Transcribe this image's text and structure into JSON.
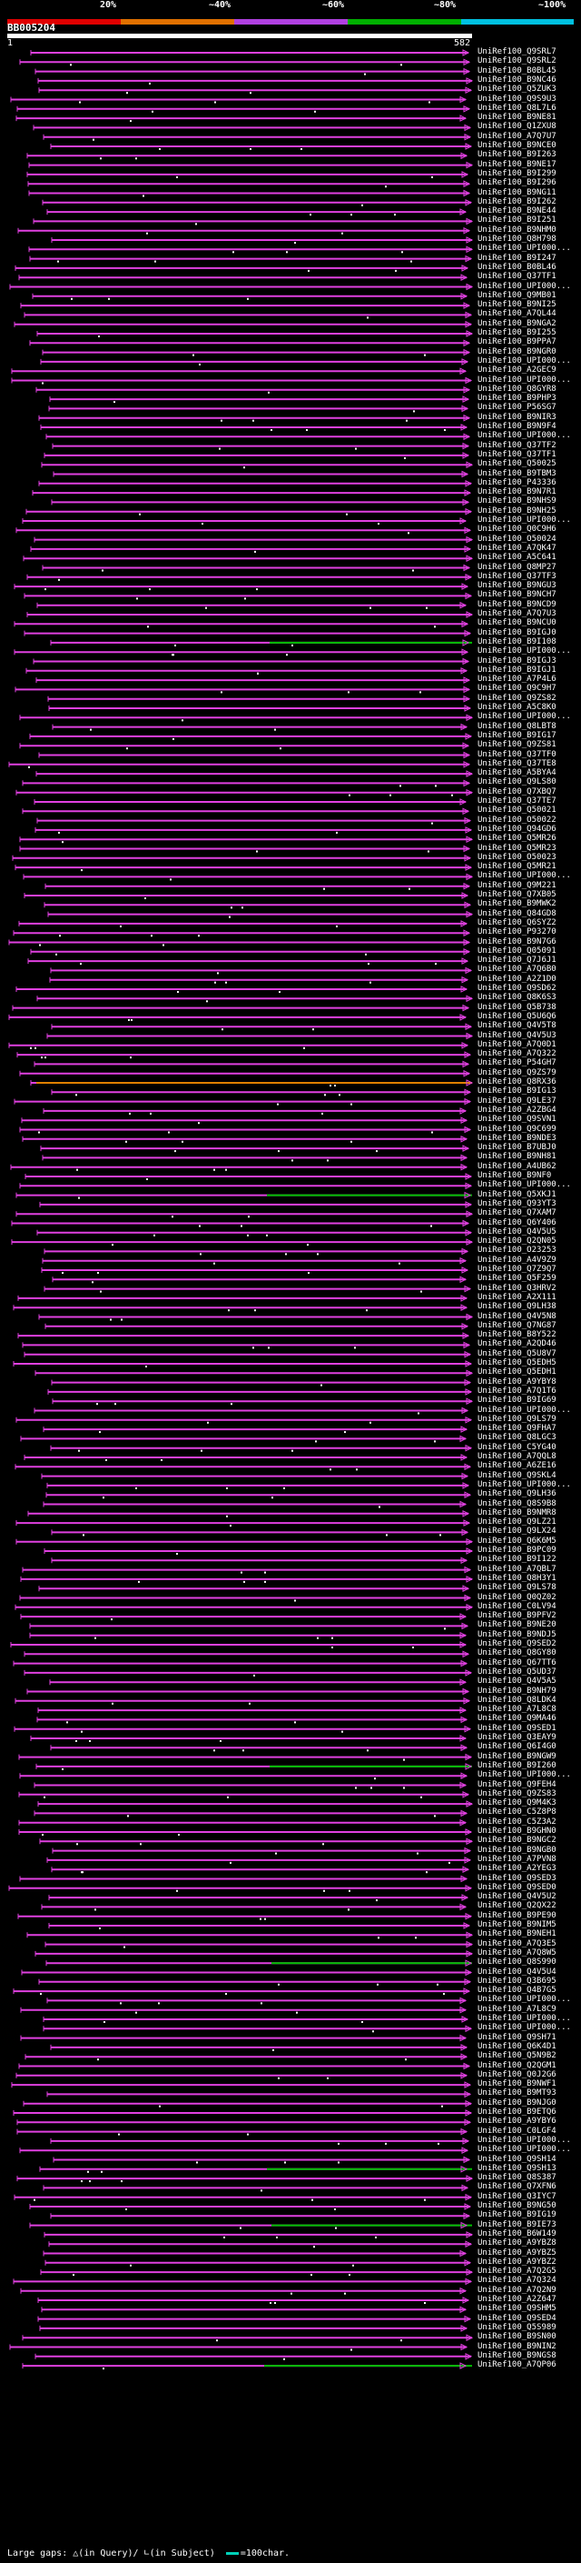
{
  "legend": {
    "percent_labels": [
      "20%",
      "~40%",
      "~60%",
      "~80%",
      "~100%"
    ],
    "colors": [
      "#e00000",
      "#e07000",
      "#b040e0",
      "#00b000",
      "#00c0e0"
    ]
  },
  "query": {
    "id": "BB005204",
    "start": "1",
    "end": "582"
  },
  "colors": {
    "hit": "#e040e0",
    "highlight_green": "#00c000",
    "highlight_orange": "#e08000",
    "background": "#000000"
  },
  "hits": [
    "UniRef100_Q9SRL7",
    "UniRef100_Q9SRL2",
    "UniRef100_B0BL45",
    "UniRef100_B9NC46",
    "UniRef100_Q5ZUK3",
    "UniRef100_Q9S9U3",
    "UniRef100_Q8L7L6",
    "UniRef100_B9NE81",
    "UniRef100_Q1ZXU8",
    "UniRef100_A7Q7U7",
    "UniRef100_B9NCE0",
    "UniRef100_B9I263",
    "UniRef100_B9NE17",
    "UniRef100_B9I299",
    "UniRef100_B9I296",
    "UniRef100_B9NG11",
    "UniRef100_B9I262",
    "UniRef100_B9NE44",
    "UniRef100_B9I251",
    "UniRef100_B9NHM0",
    "UniRef100_Q8H798",
    "UniRef100_UPI000...",
    "UniRef100_B9I247",
    "UniRef100_B0BL46",
    "UniRef100_Q37TF1",
    "UniRef100_UPI000...",
    "UniRef100_Q9MB01",
    "UniRef100_B9NI25",
    "UniRef100_A7QL44",
    "UniRef100_B9NGA2",
    "UniRef100_B9I255",
    "UniRef100_B9PPA7",
    "UniRef100_B9NGR0",
    "UniRef100_UPI000...",
    "UniRef100_A2GEC9",
    "UniRef100_UPI000...",
    "UniRef100_Q8GYR8",
    "UniRef100_B9PHP3",
    "UniRef100_P56SG7",
    "UniRef100_B9NIR3",
    "UniRef100_B9N9F4",
    "UniRef100_UPI000...",
    "UniRef100_Q37TF2",
    "UniRef100_Q37TF1",
    "UniRef100_Q50025",
    "UniRef100_B9TBM3",
    "UniRef100_P43336",
    "UniRef100_B9N7R1",
    "UniRef100_B9NHS9",
    "UniRef100_B9NH25",
    "UniRef100_UPI000...",
    "UniRef100_Q0C9H6",
    "UniRef100_O50024",
    "UniRef100_A7QK47",
    "UniRef100_A5C641",
    "UniRef100_Q8MP27",
    "UniRef100_Q37TF3",
    "UniRef100_B9NGU3",
    "UniRef100_B9NCH7",
    "UniRef100_B9NCD9",
    "UniRef100_A7Q7U3",
    "UniRef100_B9NCU0",
    "UniRef100_B9IGJ0",
    "UniRef100_B9I108",
    "UniRef100_UPI000...",
    "UniRef100_B9IGJ3",
    "UniRef100_B9IGJ1",
    "UniRef100_A7P4L6",
    "UniRef100_Q9C9H7",
    "UniRef100_Q9ZS82",
    "UniRef100_A5C8K0",
    "UniRef100_UPI000...",
    "UniRef100_Q8LBT8",
    "UniRef100_B9IG17",
    "UniRef100_Q9ZS81",
    "UniRef100_Q37TF0",
    "UniRef100_Q37TE8",
    "UniRef100_A5BYA4",
    "UniRef100_Q9LS80",
    "UniRef100_Q7XBQ7",
    "UniRef100_Q37TE7",
    "UniRef100_Q50021",
    "UniRef100_O50022",
    "UniRef100_Q94GD6",
    "UniRef100_Q5MR26",
    "UniRef100_Q5MR23",
    "UniRef100_O50023",
    "UniRef100_Q5MR21",
    "UniRef100_UPI000...",
    "UniRef100_Q9M221",
    "UniRef100_Q7XB05",
    "UniRef100_B9MWK2",
    "UniRef100_Q84GD8",
    "UniRef100_Q6SYZ2",
    "UniRef100_P93270",
    "UniRef100_B9N7G6",
    "UniRef100_Q05091",
    "UniRef100_Q7J6J1",
    "UniRef100_A7Q6B0",
    "UniRef100_A2Z1D0",
    "UniRef100_Q9SD62",
    "UniRef100_Q8K6S3",
    "UniRef100_Q5B738",
    "UniRef100_Q5U6Q6",
    "UniRef100_Q4V5T8",
    "UniRef100_Q4V5U3",
    "UniRef100_A7Q0D1",
    "UniRef100_A7Q322",
    "UniRef100_P54GH7",
    "UniRef100_Q9ZS79",
    "UniRef100_Q8RX36",
    "UniRef100_B9IG13",
    "UniRef100_Q9LE37",
    "UniRef100_A2ZBG4",
    "UniRef100_Q9SVN1",
    "UniRef100_Q9C699",
    "UniRef100_B9NDE3",
    "UniRef100_B7UBJ0",
    "UniRef100_B9NH81",
    "UniRef100_A4UB62",
    "UniRef100_B9NF0",
    "UniRef100_UPI000...",
    "UniRef100_Q5XKJ1",
    "UniRef100_Q93YT3",
    "UniRef100_Q7XAM7",
    "UniRef100_Q6Y406",
    "UniRef100_Q4V5U5",
    "UniRef100_Q2QN05",
    "UniRef100_O23253",
    "UniRef100_A4V9Z9",
    "UniRef100_Q7Z9Q7",
    "UniRef100_Q5F259",
    "UniRef100_Q3HRV2",
    "UniRef100_A2X111",
    "UniRef100_Q9LH38",
    "UniRef100_Q4V5N8",
    "UniRef100_Q7NG87",
    "UniRef100_B8Y522",
    "UniRef100_A2QD46",
    "UniRef100_Q5U8V7",
    "UniRef100_Q5EDH5",
    "UniRef100_Q5EDH1",
    "UniRef100_A9YBY8",
    "UniRef100_A7Q1T6",
    "UniRef100_B9IG69",
    "UniRef100_UPI000...",
    "UniRef100_Q9LS79",
    "UniRef100_Q9FHA7",
    "UniRef100_Q8LGC3",
    "UniRef100_C5YG40",
    "UniRef100_A7QQL8",
    "UniRef100_A6ZE16",
    "UniRef100_Q9SKL4",
    "UniRef100_UPI000...",
    "UniRef100_Q9LH36",
    "UniRef100_Q8S9B8",
    "UniRef100_B9NMR8",
    "UniRef100_Q9LZ21",
    "UniRef100_Q9LX24",
    "UniRef100_Q6K6M5",
    "UniRef100_B9PC09",
    "UniRef100_B9I122",
    "UniRef100_A7QBL7",
    "UniRef100_Q8H3Y1",
    "UniRef100_Q9LS78",
    "UniRef100_Q0QZ02",
    "UniRef100_C0LV94",
    "UniRef100_B9PFV2",
    "UniRef100_B9NE20",
    "UniRef100_B9NDJ5",
    "UniRef100_Q9SED2",
    "UniRef100_Q8GY80",
    "UniRef100_Q67TT6",
    "UniRef100_Q5UD37",
    "UniRef100_Q4V5A5",
    "UniRef100_B9NH79",
    "UniRef100_Q8LDK4",
    "UniRef100_A7L8C8",
    "UniRef100_Q9MA46",
    "UniRef100_Q9SED1",
    "UniRef100_Q3EAY9",
    "UniRef100_Q6I4G0",
    "UniRef100_B9NGW9",
    "UniRef100_B9I260",
    "UniRef100_UPI000...",
    "UniRef100_Q9FEH4",
    "UniRef100_Q9ZS83",
    "UniRef100_Q9M4K3",
    "UniRef100_C5Z8P8",
    "UniRef100_C5Z3A2",
    "UniRef100_B9GHN0",
    "UniRef100_B9NGC2",
    "UniRef100_B9NGB0",
    "UniRef100_A7PVN8",
    "UniRef100_A2YEG3",
    "UniRef100_Q9SED3",
    "UniRef100_Q9SED0",
    "UniRef100_Q4V5U2",
    "UniRef100_Q2QX22",
    "UniRef100_B9PE90",
    "UniRef100_B9NIM5",
    "UniRef100_B9NEH1",
    "UniRef100_A7Q3E5",
    "UniRef100_A7Q8W5",
    "UniRef100_Q8S990",
    "UniRef100_Q4V5U4",
    "UniRef100_Q3B695",
    "UniRef100_Q4B7G5",
    "UniRef100_UPI000...",
    "UniRef100_A7L8C9",
    "UniRef100_UPI000...",
    "UniRef100_UPI000...",
    "UniRef100_Q9SH71",
    "UniRef100_Q6K4D1",
    "UniRef100_Q5N9B2",
    "UniRef100_Q2QGM1",
    "UniRef100_Q0J2G6",
    "UniRef100_B9NWF1",
    "UniRef100_B9MT93",
    "UniRef100_B9NJG0",
    "UniRef100_B9ETQ6",
    "UniRef100_A9YBY6",
    "UniRef100_C0LGF4",
    "UniRef100_UPI000...",
    "UniRef100_UPI000...",
    "UniRef100_Q9SH14",
    "UniRef100_Q9SH13",
    "UniRef100_Q8S387",
    "UniRef100_Q7XFN6",
    "UniRef100_Q3IYC7",
    "UniRef100_B9NG50",
    "UniRef100_B9IG19",
    "UniRef100_B9IE73",
    "UniRef100_B6W149",
    "UniRef100_A9YBZ8",
    "UniRef100_A9YBZ5",
    "UniRef100_A9YBZ2",
    "UniRef100_A7Q2G5",
    "UniRef100_A7Q324",
    "UniRef100_A7Q2N9",
    "UniRef100_A2Z647",
    "UniRef100_Q9SHM5",
    "UniRef100_Q9SED4",
    "UniRef100_Q5S989",
    "UniRef100_B9SN00",
    "UniRef100_B9NIN2",
    "UniRef100_B9NGS8",
    "UniRef100_A7QP06"
  ],
  "footer": {
    "large_gaps_label": "Large gaps:",
    "in_query_label": "(in Query)/",
    "in_subject_label": "(in Subject)",
    "scale_label": "=100char."
  }
}
